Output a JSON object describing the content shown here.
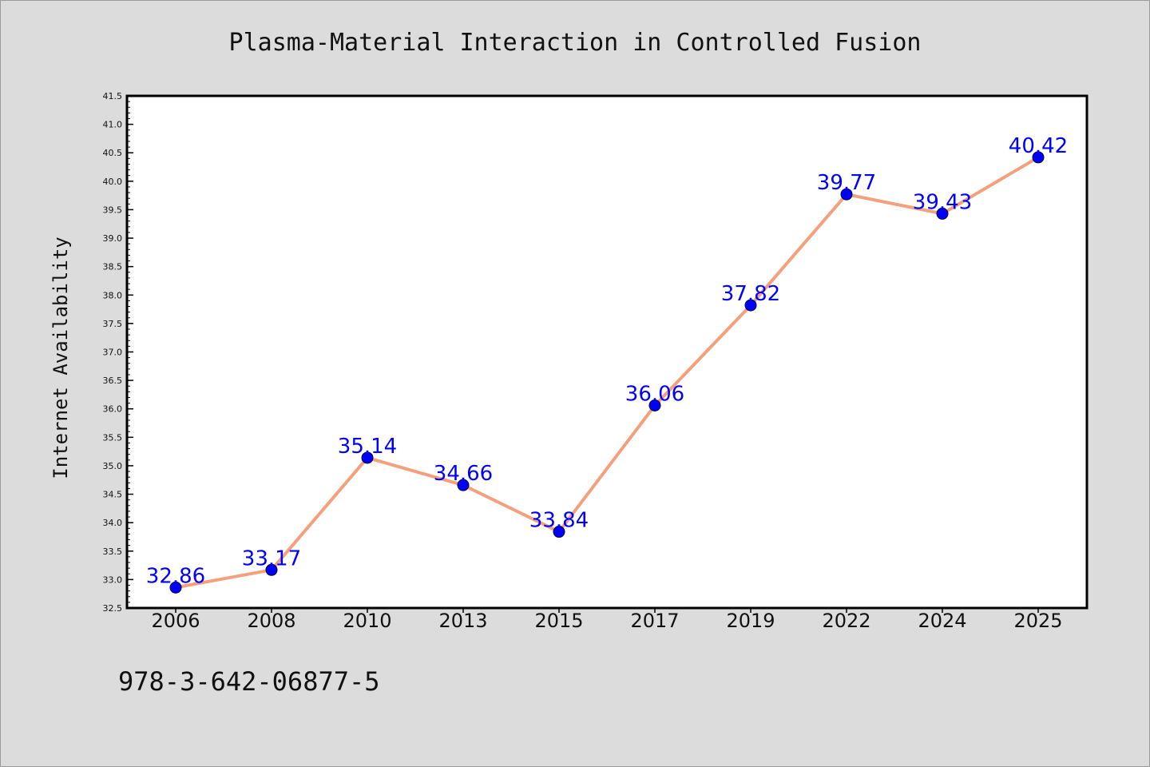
{
  "chart_data": {
    "type": "line",
    "title": "Plasma-Material Interaction in Controlled Fusion",
    "xlabel": "",
    "ylabel": "Internet Availability",
    "categories": [
      "2006",
      "2008",
      "2010",
      "2013",
      "2015",
      "2017",
      "2019",
      "2022",
      "2024",
      "2025"
    ],
    "series": [
      {
        "values": [
          32.86,
          33.17,
          35.14,
          34.66,
          33.84,
          36.06,
          37.82,
          39.77,
          39.43,
          40.42
        ]
      }
    ],
    "data_labels": [
      "32.86",
      "33.17",
      "35.14",
      "34.66",
      "33.84",
      "36.06",
      "37.82",
      "39.77",
      "39.43",
      "40.42"
    ],
    "ylim": [
      32.5,
      41.5
    ],
    "y_ticks": [
      "32.5",
      "33.0",
      "33.5",
      "34.0",
      "34.5",
      "35.0",
      "35.5",
      "36.0",
      "36.5",
      "37.0",
      "37.5",
      "38.0",
      "38.5",
      "39.0",
      "39.5",
      "40.0",
      "40.5",
      "41.0",
      "41.5"
    ],
    "grid": false,
    "legend": "none",
    "colors": {
      "line": "#f4a07c",
      "marker": "#0000ff",
      "label": "#0000ff",
      "background": "#dcdcdc",
      "plot_background": "#ffffff"
    }
  },
  "footer_text": "978-3-642-06877-5"
}
